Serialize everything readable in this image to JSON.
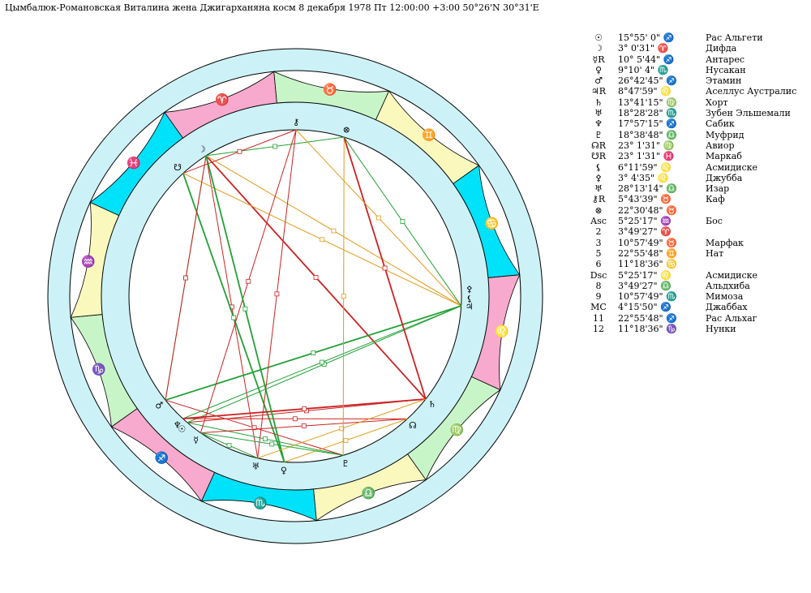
{
  "header": "Цымбалюк-Романовская Виталина жена Джигарханяна косм    8 декабря 1978  Пт   12:00:00 +3:00 50°26'N  30°31'E",
  "colors": {
    "ring_outer": "#ccf2f7",
    "fire": "#f7aacd",
    "earth": "#c8f5c8",
    "air": "#fbf8be",
    "water": "#00e1fa",
    "aspect_red": "#cc2222",
    "aspect_green": "#22a035",
    "aspect_orange": "#e09b1a"
  },
  "zodiac": [
    {
      "sign": "Aries",
      "glyph": "♈"
    },
    {
      "sign": "Taurus",
      "glyph": "♉"
    },
    {
      "sign": "Gemini",
      "glyph": "♊"
    },
    {
      "sign": "Cancer",
      "glyph": "♋"
    },
    {
      "sign": "Leo",
      "glyph": "♌"
    },
    {
      "sign": "Virgo",
      "glyph": "♍"
    },
    {
      "sign": "Libra",
      "glyph": "♎"
    },
    {
      "sign": "Scorpio",
      "glyph": "♏"
    },
    {
      "sign": "Sagittarius",
      "glyph": "♐"
    },
    {
      "sign": "Capricorn",
      "glyph": "♑"
    },
    {
      "sign": "Aquarius",
      "glyph": "♒"
    },
    {
      "sign": "Pisces",
      "glyph": "♓"
    }
  ],
  "chart_planets": [
    {
      "name": "sun",
      "glyph": "☉",
      "lon": 255.92
    },
    {
      "name": "moon",
      "glyph": "☽",
      "lon": 3.01
    },
    {
      "name": "mercury",
      "glyph": "☿",
      "lon": 250.1
    },
    {
      "name": "venus",
      "glyph": "♀",
      "lon": 219.17
    },
    {
      "name": "mars",
      "glyph": "♂",
      "lon": 266.71
    },
    {
      "name": "jupiter",
      "glyph": "♃",
      "lon": 128.8
    },
    {
      "name": "saturn",
      "glyph": "♄",
      "lon": 163.69
    },
    {
      "name": "uranus",
      "glyph": "♅",
      "lon": 228.47
    },
    {
      "name": "neptune",
      "glyph": "♆",
      "lon": 257.96
    },
    {
      "name": "pluto",
      "glyph": "♇",
      "lon": 198.65
    },
    {
      "name": "north-node",
      "glyph": "☊",
      "lon": 173.03
    },
    {
      "name": "south-node",
      "glyph": "☋",
      "lon": 353.03
    },
    {
      "name": "lilith",
      "glyph": "⚸",
      "lon": 126.2
    },
    {
      "name": "pallas",
      "glyph": "⚴",
      "lon": 123.08
    },
    {
      "name": "chiron",
      "glyph": "⚷",
      "lon": 35.73
    },
    {
      "name": "fortune",
      "glyph": "⊗",
      "lon": 52.51
    }
  ],
  "aspects": [
    {
      "a": "moon",
      "b": "saturn",
      "color": "red"
    },
    {
      "a": "moon",
      "b": "uranus",
      "color": "red"
    },
    {
      "a": "moon",
      "b": "jupiter",
      "color": "orange"
    },
    {
      "a": "moon",
      "b": "mars",
      "color": "green"
    },
    {
      "a": "moon",
      "b": "fortune",
      "color": "green"
    },
    {
      "a": "south-node",
      "b": "venus",
      "color": "green"
    },
    {
      "a": "south-node",
      "b": "jupiter",
      "color": "orange"
    },
    {
      "a": "sun",
      "b": "saturn",
      "color": "red"
    },
    {
      "a": "sun",
      "b": "jupiter",
      "color": "green"
    },
    {
      "a": "sun",
      "b": "pluto",
      "color": "green"
    },
    {
      "a": "mars",
      "b": "jupiter",
      "color": "green"
    },
    {
      "a": "mars",
      "b": "pluto",
      "color": "red"
    },
    {
      "a": "mars",
      "b": "moon",
      "color": "red"
    },
    {
      "a": "neptune",
      "b": "jupiter",
      "color": "green"
    },
    {
      "a": "neptune",
      "b": "north-node",
      "color": "red"
    },
    {
      "a": "neptune",
      "b": "saturn",
      "color": "red"
    },
    {
      "a": "mercury",
      "b": "north-node",
      "color": "red"
    },
    {
      "a": "mercury",
      "b": "uranus",
      "color": "green"
    },
    {
      "a": "mercury",
      "b": "chiron",
      "color": "red"
    },
    {
      "a": "venus",
      "b": "north-node",
      "color": "orange"
    },
    {
      "a": "venus",
      "b": "moon",
      "color": "green"
    },
    {
      "a": "uranus",
      "b": "saturn",
      "color": "orange"
    },
    {
      "a": "uranus",
      "b": "chiron",
      "color": "red"
    },
    {
      "a": "pluto",
      "b": "fortune",
      "color": "orange"
    },
    {
      "a": "pluto",
      "b": "mercury",
      "color": "green"
    },
    {
      "a": "saturn",
      "b": "fortune",
      "color": "red"
    },
    {
      "a": "chiron",
      "b": "jupiter",
      "color": "orange"
    },
    {
      "a": "jupiter",
      "b": "fortune",
      "color": "green"
    },
    {
      "a": "south-node",
      "b": "chiron",
      "color": "red"
    }
  ],
  "table": [
    {
      "sym": "☉",
      "pos": "15°55' 0\" ♐",
      "star": "Рас Альгети"
    },
    {
      "sym": "☽",
      "pos": "3° 0'31\" ♈",
      "star": "Дифда"
    },
    {
      "sym": "☿R",
      "pos": "10° 5'44\" ♐",
      "star": "Антарес"
    },
    {
      "sym": "♀",
      "pos": "9°10' 4\" ♏",
      "star": "Нусакан"
    },
    {
      "sym": "♂",
      "pos": "26°42'45\" ♐",
      "star": "Этамин"
    },
    {
      "sym": "♃R",
      "pos": "8°47'59\" ♌",
      "star": "Аселлус Аустралис"
    },
    {
      "sym": "♄",
      "pos": "13°41'15\" ♍",
      "star": "Хорт"
    },
    {
      "sym": "♅",
      "pos": "18°28'28\" ♏",
      "star": "Зубен Эльшемали"
    },
    {
      "sym": "♆",
      "pos": "17°57'15\" ♐",
      "star": "Сабик"
    },
    {
      "sym": "♇",
      "pos": "18°38'48\" ♎",
      "star": "Муфрид"
    },
    {
      "sym": "☊R",
      "pos": "23° 1'31\" ♍",
      "star": "Авиор"
    },
    {
      "sym": "☋R",
      "pos": "23° 1'31\" ♓",
      "star": "Маркаб"
    },
    {
      "sym": "⚸",
      "pos": "6°11'59\" ♌",
      "star": "Асмидиске"
    },
    {
      "sym": "⚴",
      "pos": "3° 4'35\" ♌",
      "star": "Джубба"
    },
    {
      "sym": "♅",
      "pos": "28°13'14\" ♎",
      "star": "Изар"
    },
    {
      "sym": "⚷R",
      "pos": "5°43'39\" ♉",
      "star": "Каф"
    },
    {
      "sym": "⊗",
      "pos": "22°30'48\" ♉",
      "star": ""
    },
    {
      "sym": "Asc",
      "pos": "5°25'17\" ♒",
      "star": "Бос"
    },
    {
      "sym": "2",
      "pos": "3°49'27\" ♈",
      "star": ""
    },
    {
      "sym": "3",
      "pos": "10°57'49\" ♉",
      "star": "Марфак"
    },
    {
      "sym": "5",
      "pos": "22°55'48\" ♊",
      "star": "Нат"
    },
    {
      "sym": "6",
      "pos": "11°18'36\" ♋",
      "star": ""
    },
    {
      "sym": "Dsc",
      "pos": "5°25'17\" ♌",
      "star": "Асмидиске"
    },
    {
      "sym": "8",
      "pos": "3°49'27\" ♎",
      "star": "Альдхиба"
    },
    {
      "sym": "9",
      "pos": "10°57'49\" ♏",
      "star": "Мимоза"
    },
    {
      "sym": "MC",
      "pos": "4°15'50\" ♐",
      "star": "Джаббах"
    },
    {
      "sym": "11",
      "pos": "22°55'48\" ♐",
      "star": "Рас Альхаг"
    },
    {
      "sym": "12",
      "pos": "11°18'36\" ♑",
      "star": "Нунки"
    }
  ]
}
